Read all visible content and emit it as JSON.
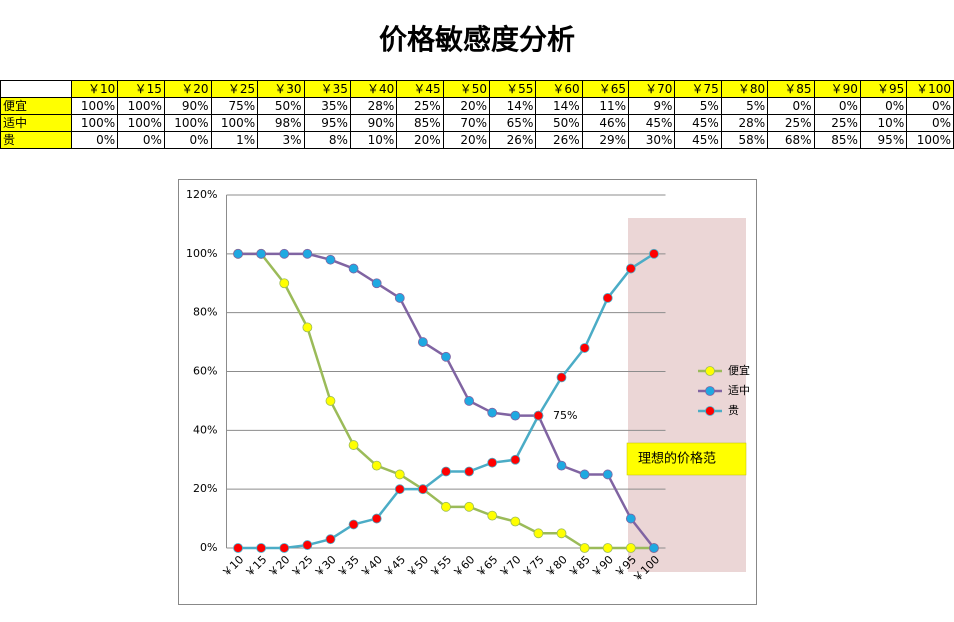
{
  "title": "价格敏感度分析",
  "table": {
    "header": [
      "￥10",
      "￥15",
      "￥20",
      "￥25",
      "￥30",
      "￥35",
      "￥40",
      "￥45",
      "￥50",
      "￥55",
      "￥60",
      "￥65",
      "￥70",
      "￥75",
      "￥80",
      "￥85",
      "￥90",
      "￥95",
      "￥100"
    ],
    "rows": [
      {
        "label": "便宜",
        "cells": [
          "100%",
          "100%",
          "90%",
          "75%",
          "50%",
          "35%",
          "28%",
          "25%",
          "20%",
          "14%",
          "14%",
          "11%",
          "9%",
          "5%",
          "5%",
          "0%",
          "0%",
          "0%",
          "0%"
        ]
      },
      {
        "label": "适中",
        "cells": [
          "100%",
          "100%",
          "100%",
          "100%",
          "98%",
          "95%",
          "90%",
          "85%",
          "70%",
          "65%",
          "50%",
          "46%",
          "45%",
          "45%",
          "28%",
          "25%",
          "25%",
          "10%",
          "0%"
        ]
      },
      {
        "label": "贵",
        "cells": [
          "0%",
          "0%",
          "0%",
          "1%",
          "3%",
          "8%",
          "10%",
          "20%",
          "20%",
          "26%",
          "26%",
          "29%",
          "30%",
          "45%",
          "58%",
          "68%",
          "85%",
          "95%",
          "100%"
        ]
      }
    ]
  },
  "chart_data": {
    "type": "line",
    "categories": [
      "￥10",
      "￥15",
      "￥20",
      "￥25",
      "￥30",
      "￥35",
      "￥40",
      "￥45",
      "￥50",
      "￥55",
      "￥60",
      "￥65",
      "￥70",
      "￥75",
      "￥80",
      "￥85",
      "￥90",
      "￥95",
      "￥100"
    ],
    "series": [
      {
        "name": "便宜",
        "color": "#9bbb59",
        "marker_color": "#ffff00",
        "values": [
          100,
          100,
          90,
          75,
          50,
          35,
          28,
          25,
          20,
          14,
          14,
          11,
          9,
          5,
          5,
          0,
          0,
          0,
          0
        ]
      },
      {
        "name": "适中",
        "color": "#8064a2",
        "marker_color": "#1fa9e1",
        "values": [
          100,
          100,
          100,
          100,
          98,
          95,
          90,
          85,
          70,
          65,
          50,
          46,
          45,
          45,
          28,
          25,
          25,
          10,
          0
        ]
      },
      {
        "name": "贵",
        "color": "#4bacc6",
        "marker_color": "#ff0000",
        "values": [
          0,
          0,
          0,
          1,
          3,
          8,
          10,
          20,
          20,
          26,
          26,
          29,
          30,
          45,
          58,
          68,
          85,
          95,
          100
        ]
      }
    ],
    "ylim": [
      0,
      120
    ],
    "yticks": [
      {
        "value": 0,
        "label": "0%"
      },
      {
        "value": 20,
        "label": "20%"
      },
      {
        "value": 40,
        "label": "40%"
      },
      {
        "value": 60,
        "label": "60%"
      },
      {
        "value": 80,
        "label": "80%"
      },
      {
        "value": 100,
        "label": "100%"
      },
      {
        "value": 120,
        "label": "120%"
      }
    ],
    "grid": true,
    "legend": "right",
    "annotations": [
      "75%",
      "理想的价格范"
    ]
  }
}
